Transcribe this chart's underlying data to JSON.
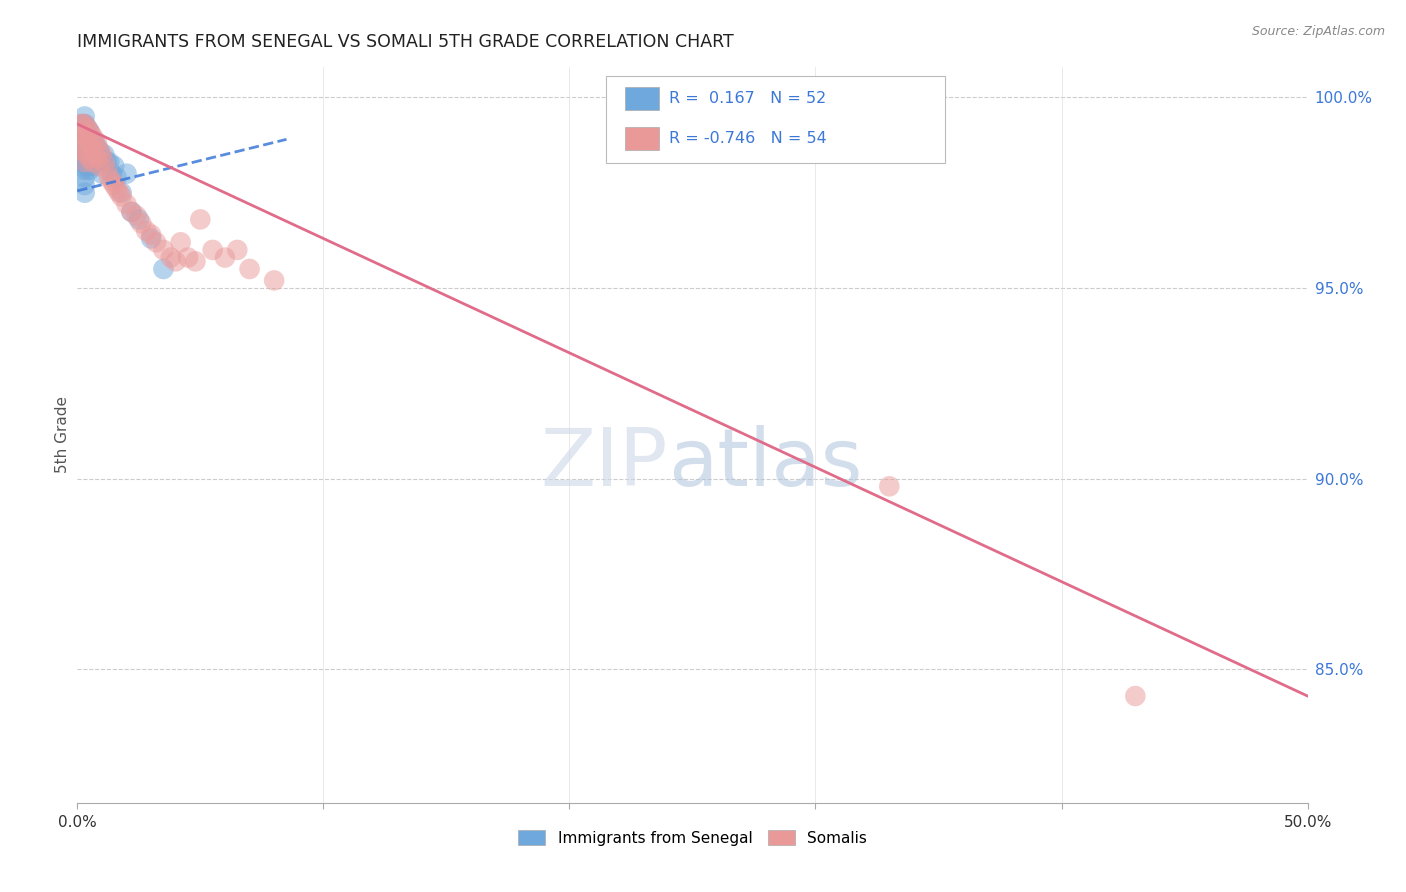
{
  "title": "IMMIGRANTS FROM SENEGAL VS SOMALI 5TH GRADE CORRELATION CHART",
  "source": "Source: ZipAtlas.com",
  "ylabel": "5th Grade",
  "xlim": [
    0.0,
    0.5
  ],
  "ylim": [
    0.815,
    1.008
  ],
  "blue_R": 0.167,
  "blue_N": 52,
  "pink_R": -0.746,
  "pink_N": 54,
  "blue_color": "#6fa8dc",
  "pink_color": "#ea9999",
  "blue_line_color": "#3c78d8",
  "pink_line_color": "#e06c8a",
  "background_color": "#ffffff",
  "grid_color": "#cccccc",
  "blue_points_x": [
    0.001,
    0.001,
    0.001,
    0.001,
    0.002,
    0.002,
    0.002,
    0.002,
    0.002,
    0.002,
    0.003,
    0.003,
    0.003,
    0.003,
    0.003,
    0.003,
    0.003,
    0.003,
    0.003,
    0.003,
    0.003,
    0.004,
    0.004,
    0.004,
    0.004,
    0.004,
    0.005,
    0.005,
    0.005,
    0.005,
    0.006,
    0.006,
    0.006,
    0.007,
    0.007,
    0.008,
    0.008,
    0.009,
    0.01,
    0.01,
    0.011,
    0.012,
    0.013,
    0.014,
    0.015,
    0.016,
    0.018,
    0.02,
    0.022,
    0.025,
    0.03,
    0.035
  ],
  "blue_points_y": [
    0.99,
    0.987,
    0.985,
    0.982,
    0.993,
    0.991,
    0.989,
    0.987,
    0.985,
    0.983,
    0.995,
    0.993,
    0.991,
    0.989,
    0.987,
    0.985,
    0.983,
    0.981,
    0.979,
    0.977,
    0.975,
    0.992,
    0.99,
    0.988,
    0.985,
    0.982,
    0.991,
    0.988,
    0.985,
    0.981,
    0.989,
    0.986,
    0.982,
    0.988,
    0.984,
    0.987,
    0.983,
    0.986,
    0.984,
    0.98,
    0.985,
    0.983,
    0.983,
    0.98,
    0.982,
    0.979,
    0.975,
    0.98,
    0.97,
    0.968,
    0.963,
    0.955
  ],
  "pink_points_x": [
    0.001,
    0.001,
    0.002,
    0.002,
    0.002,
    0.003,
    0.003,
    0.003,
    0.003,
    0.004,
    0.004,
    0.004,
    0.005,
    0.005,
    0.005,
    0.006,
    0.006,
    0.006,
    0.007,
    0.007,
    0.008,
    0.008,
    0.009,
    0.009,
    0.01,
    0.011,
    0.012,
    0.013,
    0.014,
    0.015,
    0.016,
    0.017,
    0.018,
    0.02,
    0.022,
    0.024,
    0.026,
    0.028,
    0.03,
    0.032,
    0.035,
    0.038,
    0.04,
    0.042,
    0.045,
    0.048,
    0.05,
    0.055,
    0.06,
    0.065,
    0.07,
    0.08,
    0.33,
    0.43
  ],
  "pink_points_y": [
    0.993,
    0.988,
    0.993,
    0.99,
    0.986,
    0.993,
    0.99,
    0.987,
    0.983,
    0.992,
    0.989,
    0.985,
    0.991,
    0.988,
    0.984,
    0.99,
    0.987,
    0.983,
    0.989,
    0.985,
    0.988,
    0.984,
    0.986,
    0.982,
    0.985,
    0.983,
    0.981,
    0.979,
    0.978,
    0.977,
    0.976,
    0.975,
    0.974,
    0.972,
    0.97,
    0.969,
    0.967,
    0.965,
    0.964,
    0.962,
    0.96,
    0.958,
    0.957,
    0.962,
    0.958,
    0.957,
    0.968,
    0.96,
    0.958,
    0.96,
    0.955,
    0.952,
    0.898,
    0.843
  ],
  "blue_line_x": [
    0.0,
    0.085
  ],
  "blue_line_y": [
    0.9755,
    0.989
  ],
  "pink_line_x": [
    0.0,
    0.5
  ],
  "pink_line_y": [
    0.993,
    0.843
  ]
}
